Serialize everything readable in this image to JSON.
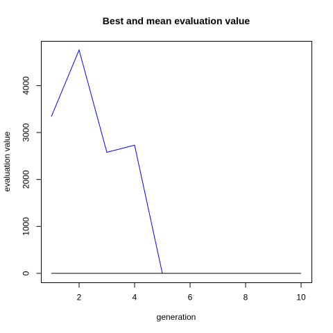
{
  "chart_data": {
    "type": "line",
    "title": "Best and mean evaluation value",
    "xlabel": "generation",
    "ylabel": "evaluation value",
    "xlim": [
      1,
      10
    ],
    "ylim": [
      0,
      4760
    ],
    "xticks": [
      2,
      4,
      6,
      8,
      10
    ],
    "yticks": [
      0,
      1000,
      2000,
      3000,
      4000
    ],
    "grid": false,
    "x": [
      1,
      2,
      3,
      4,
      5,
      6,
      7,
      8,
      9,
      10
    ],
    "series": [
      {
        "color": "#0000ff",
        "values": [
          3340,
          4760,
          2580,
          2730,
          0,
          0,
          0,
          0,
          0,
          0
        ]
      },
      {
        "color": "#000000",
        "values": [
          0,
          0,
          0,
          0,
          0,
          0,
          0,
          0,
          0,
          0
        ]
      }
    ]
  }
}
